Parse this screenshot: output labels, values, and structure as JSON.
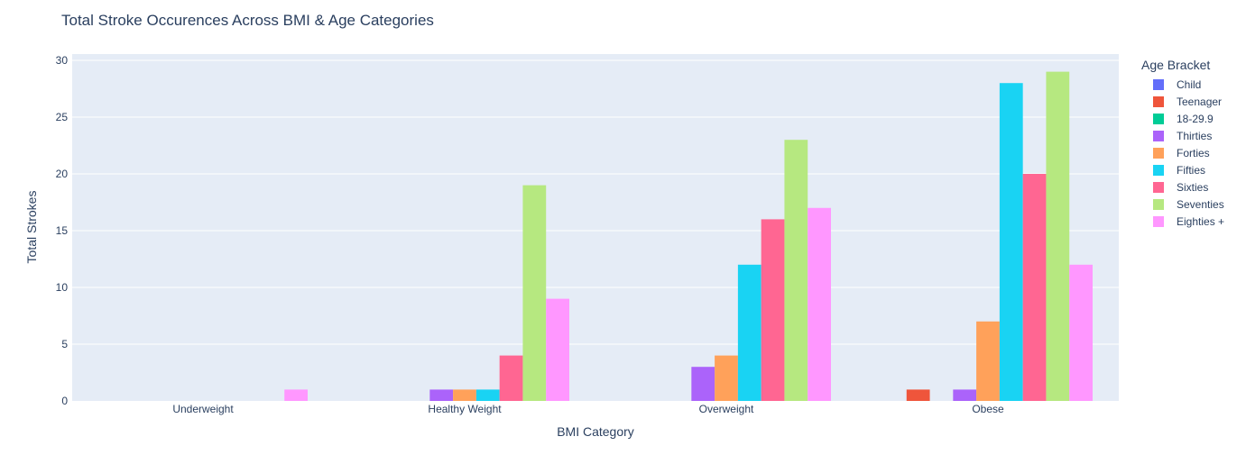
{
  "chart_data": {
    "type": "bar",
    "title": "Total Stroke Occurences Across BMI & Age Categories",
    "xlabel": "BMI Category",
    "ylabel": "Total Strokes",
    "ylim": [
      0,
      30.5
    ],
    "yticks": [
      0,
      5,
      10,
      15,
      20,
      25,
      30
    ],
    "grid": true,
    "legend_title": "Age Bracket",
    "legend_position": "right",
    "categories": [
      "Underweight",
      "Healthy Weight",
      "Overweight",
      "Obese"
    ],
    "series": [
      {
        "name": "Child",
        "color": "#636efa",
        "values": [
          0,
          0,
          0,
          0
        ]
      },
      {
        "name": "Teenager",
        "color": "#ef553b",
        "values": [
          0,
          0,
          0,
          1
        ]
      },
      {
        "name": "18-29.9",
        "color": "#00cc96",
        "values": [
          0,
          0,
          0,
          0
        ]
      },
      {
        "name": "Thirties",
        "color": "#ab63fa",
        "values": [
          0,
          1,
          3,
          1
        ]
      },
      {
        "name": "Forties",
        "color": "#ffa15a",
        "values": [
          0,
          1,
          4,
          7
        ]
      },
      {
        "name": "Fifties",
        "color": "#19d3f3",
        "values": [
          0,
          1,
          12,
          28
        ]
      },
      {
        "name": "Sixties",
        "color": "#ff6692",
        "values": [
          0,
          4,
          16,
          20
        ]
      },
      {
        "name": "Seventies",
        "color": "#b6e880",
        "values": [
          0,
          19,
          23,
          29
        ]
      },
      {
        "name": "Eighties +",
        "color": "#ff97ff",
        "values": [
          1,
          9,
          17,
          12
        ]
      }
    ]
  }
}
